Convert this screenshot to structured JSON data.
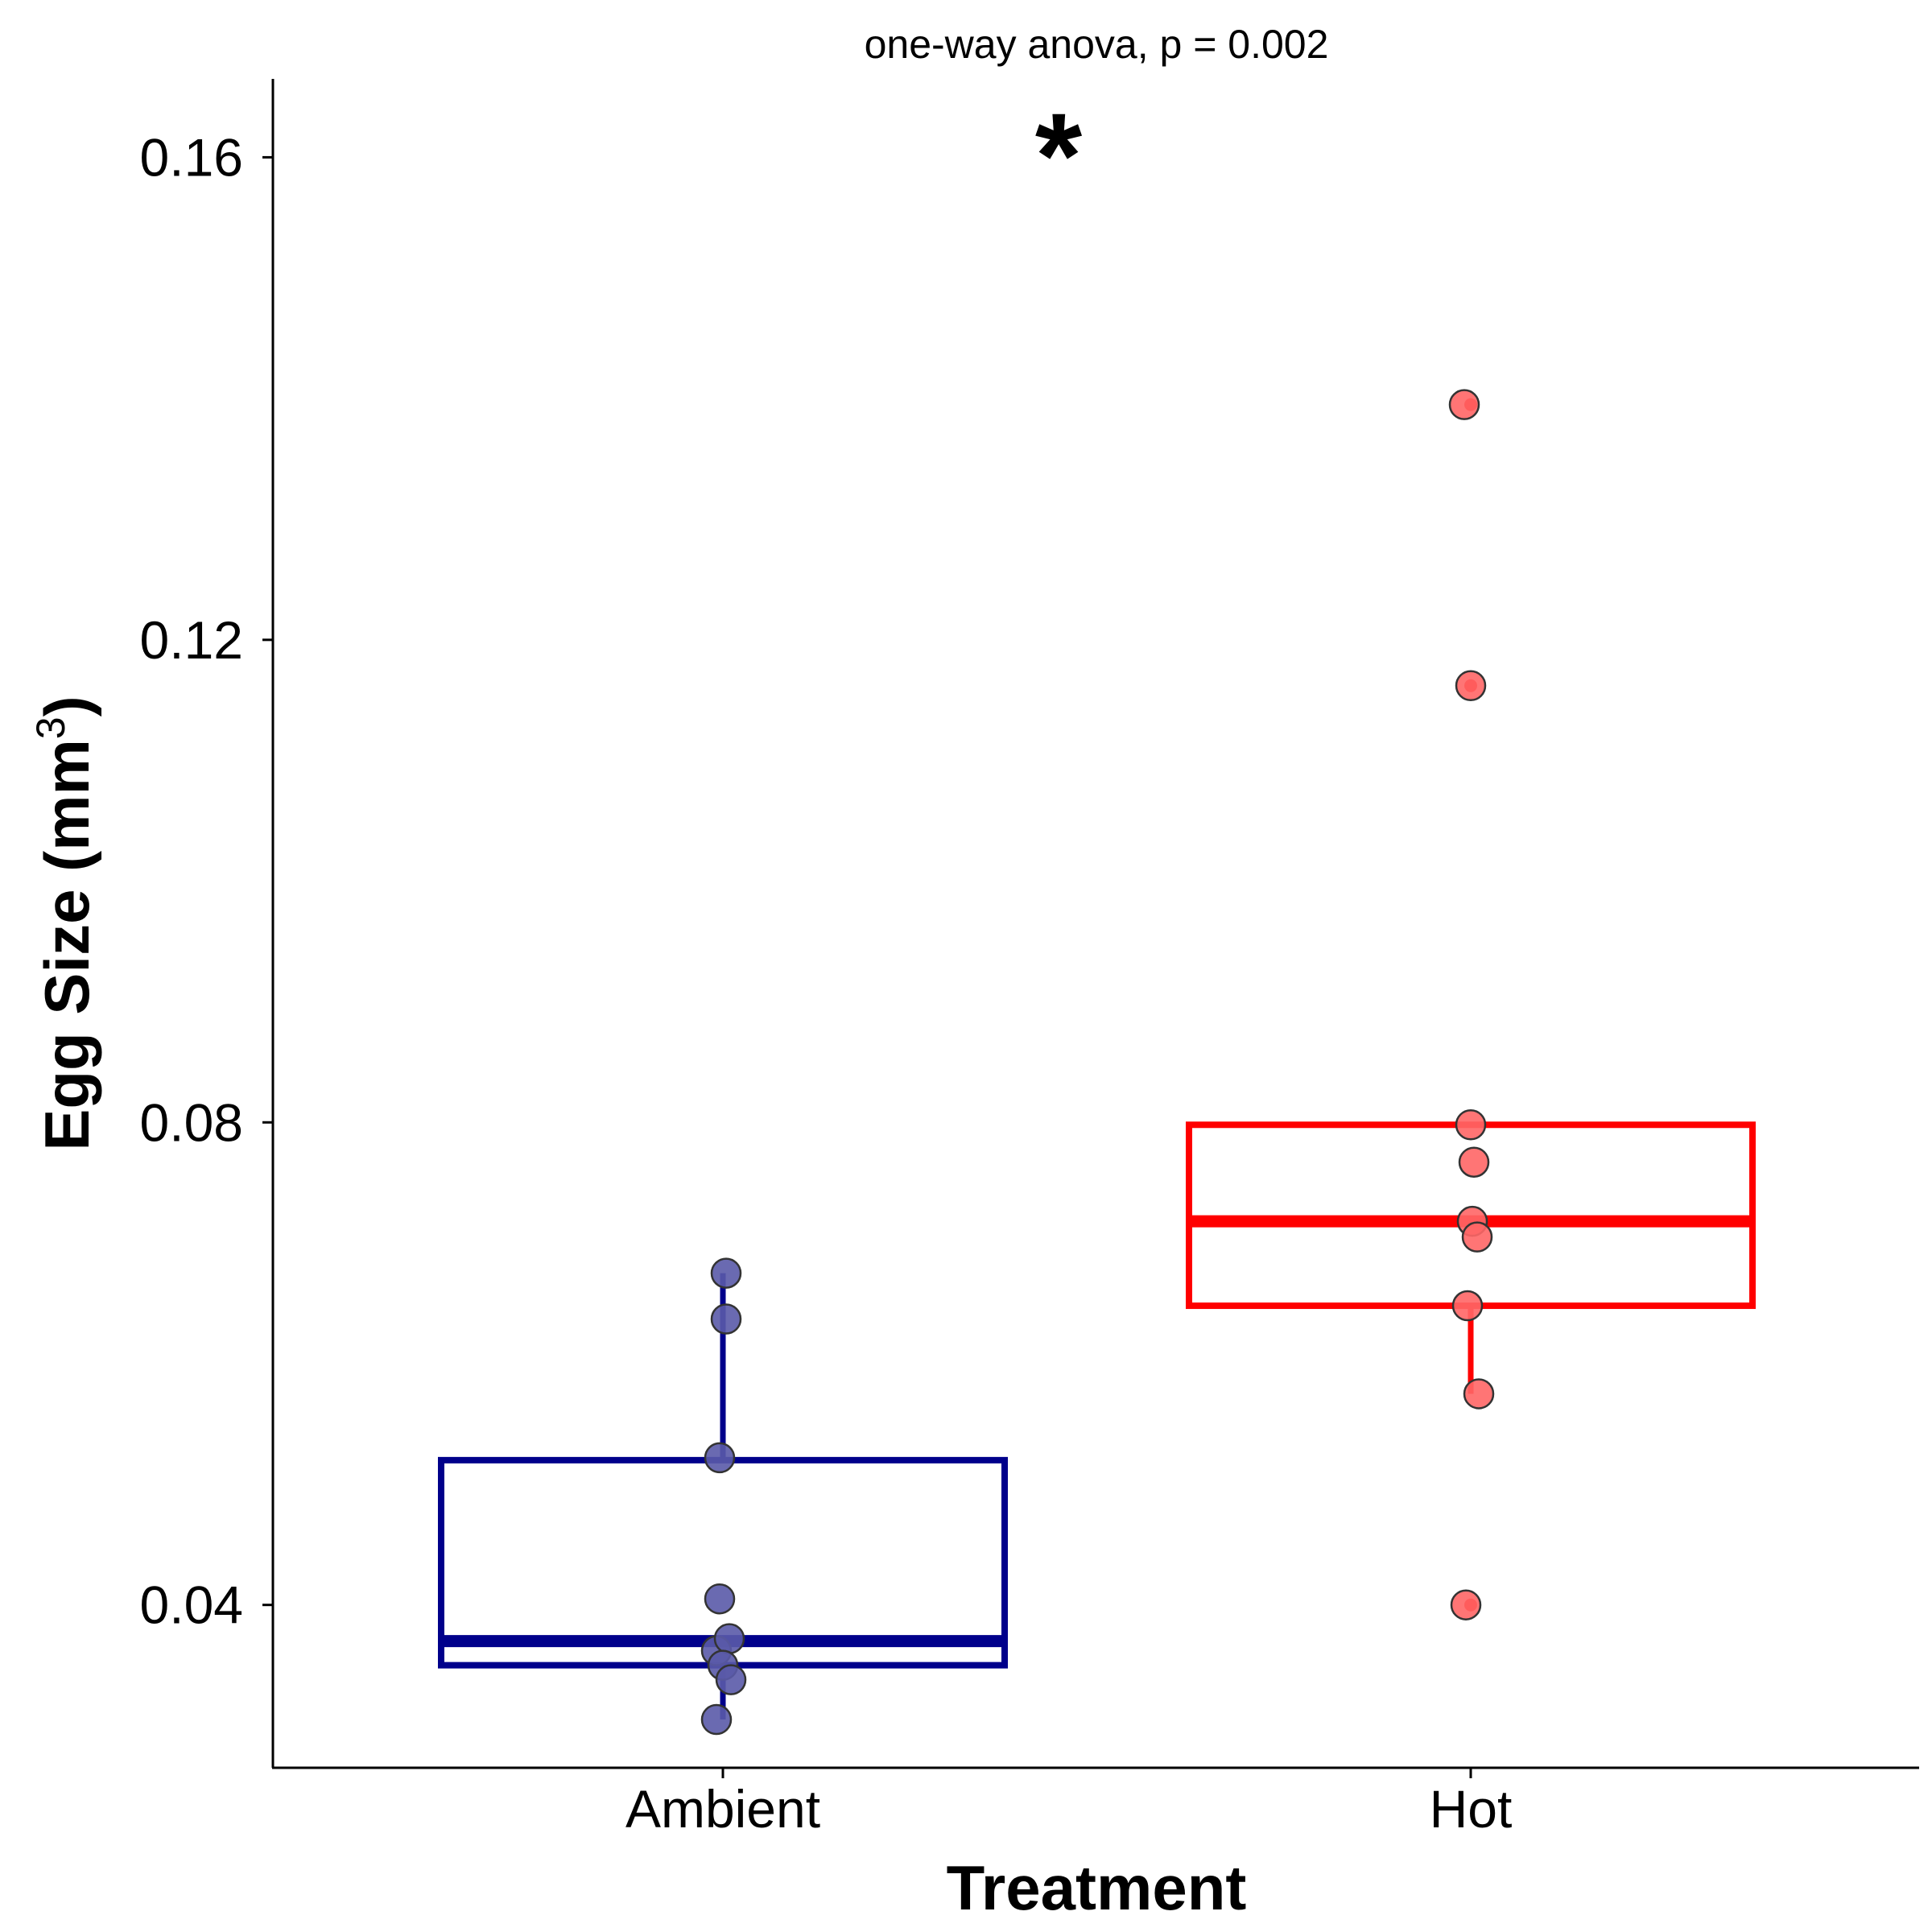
{
  "chart_data": {
    "type": "boxplot",
    "title": "",
    "annotation": "one-way anova, p = 0.002",
    "significance_marker": "*",
    "xlabel": "Treatment",
    "ylabel_main": "Egg Size (mm",
    "ylabel_superscript": "3",
    "ylabel_close": ")",
    "ylim": [
      0.0265,
      0.1665
    ],
    "yticks": [
      0.04,
      0.08,
      0.12,
      0.16
    ],
    "ytick_labels": [
      "0.04",
      "0.08",
      "0.12",
      "0.16"
    ],
    "categories": [
      "Ambient",
      "Hot"
    ],
    "series": [
      {
        "name": "Ambient",
        "color": "#00008B",
        "point_color": "#5A5AA8",
        "box": {
          "q1": 0.035,
          "median": 0.037,
          "q3": 0.052,
          "whisker_low": 0.0305,
          "whisker_high": 0.0675
        },
        "points": [
          {
            "jitter": 0.01,
            "value": 0.0675
          },
          {
            "jitter": 0.01,
            "value": 0.0637
          },
          {
            "jitter": -0.01,
            "value": 0.0522
          },
          {
            "jitter": -0.01,
            "value": 0.0405
          },
          {
            "jitter": -0.02,
            "value": 0.0362
          },
          {
            "jitter": 0.02,
            "value": 0.0372
          },
          {
            "jitter": 0.0,
            "value": 0.035
          },
          {
            "jitter": 0.025,
            "value": 0.0338
          },
          {
            "jitter": -0.02,
            "value": 0.0305
          }
        ],
        "outliers": []
      },
      {
        "name": "Hot",
        "color": "#FF0000",
        "point_color": "#FF6666",
        "box": {
          "q1": 0.0648,
          "median": 0.0718,
          "q3": 0.0798,
          "whisker_low": 0.0575,
          "whisker_high": 0.0798
        },
        "points": [
          {
            "jitter": -0.02,
            "value": 0.1395
          },
          {
            "jitter": 0.0,
            "value": 0.1162
          },
          {
            "jitter": 0.0,
            "value": 0.0798
          },
          {
            "jitter": 0.01,
            "value": 0.0767
          },
          {
            "jitter": 0.005,
            "value": 0.0718
          },
          {
            "jitter": 0.02,
            "value": 0.0705
          },
          {
            "jitter": -0.01,
            "value": 0.0648
          },
          {
            "jitter": 0.025,
            "value": 0.0575
          },
          {
            "jitter": -0.015,
            "value": 0.04
          }
        ],
        "outliers": [
          0.1395,
          0.1162,
          0.04
        ]
      }
    ]
  }
}
